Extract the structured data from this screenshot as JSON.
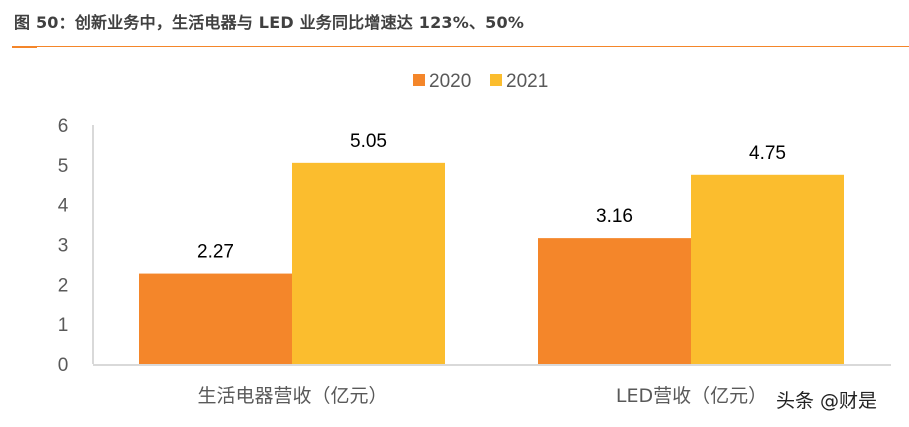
{
  "figure": {
    "title": "图 50：创新业务中，生活电器与 LED 业务同比增速达 123%、50%",
    "watermark": "头条 @财是"
  },
  "colors": {
    "series_2020": "#f4862a",
    "series_2021": "#fbbd2e",
    "axis": "#d9d9d9",
    "title_rule": "#f4862a"
  },
  "chart_data": {
    "type": "bar",
    "title": "",
    "xlabel": "",
    "ylabel": "",
    "categories": [
      "生活电器营收（亿元）",
      "LED营收（亿元）"
    ],
    "series": [
      {
        "name": "2020",
        "values": [
          2.27,
          3.16
        ],
        "labels": [
          "2.27",
          "3.16"
        ]
      },
      {
        "name": "2021",
        "values": [
          5.05,
          4.75
        ],
        "labels": [
          "5.05",
          "4.75"
        ]
      }
    ],
    "ylim": [
      0,
      6
    ],
    "yticks": [
      "0",
      "1",
      "2",
      "3",
      "4",
      "5",
      "6"
    ],
    "grid": false,
    "legend_position": "top-center"
  }
}
